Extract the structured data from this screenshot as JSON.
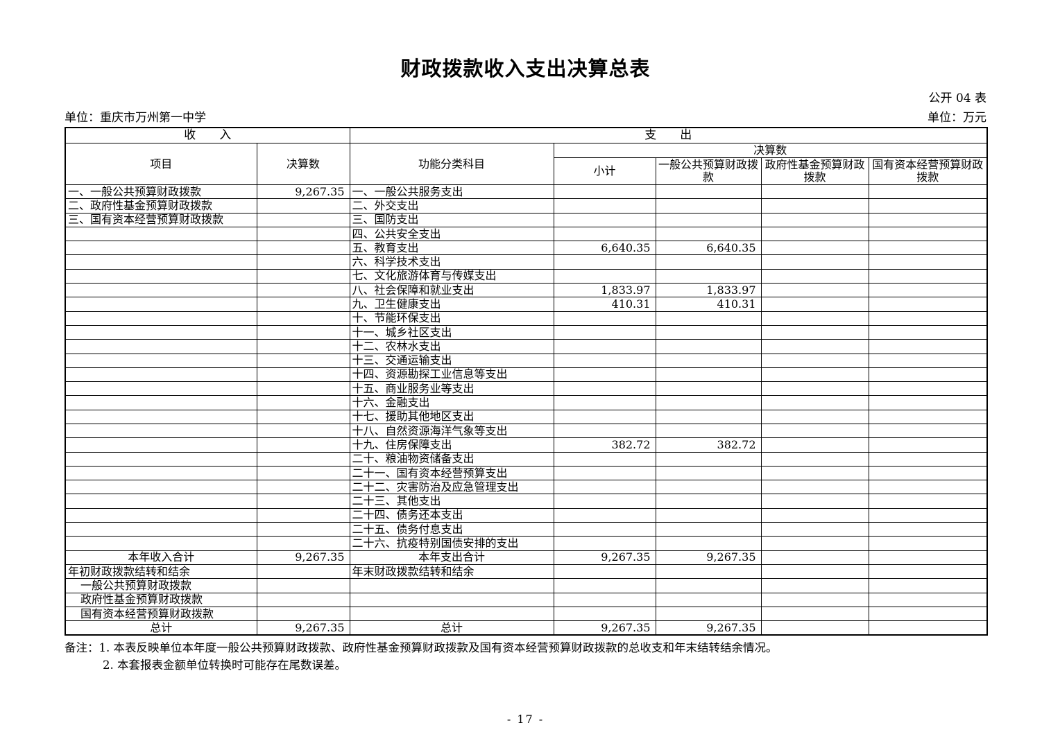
{
  "page": {
    "title": "财政拨款收入支出决算总表",
    "table_code": "公开 04 表",
    "unit_name": "单位：重庆市万州第一中学",
    "unit_measure": "单位：万元",
    "page_number": "- 17 -",
    "notes": {
      "line1": "备注：1. 本表反映单位本年度一般公共预算财政拨款、政府性基金预算财政拨款及国有资本经营预算财政拨款的总收支和年末结转结余情况。",
      "line2": "2. 本套报表金额单位转换时可能存在尾数误差。"
    }
  },
  "table": {
    "header": {
      "income_section": "收　　入",
      "expenditure_section": "支　　出",
      "item": "项目",
      "income_final_amount": "决算数",
      "functional_category": "功能分类科目",
      "expenditure_final_amount": "决算数",
      "subtotal": "小计",
      "general_public_budget": "一般公共预算财政拨款",
      "gov_fund_budget": "政府性基金预算财政拨款",
      "state_capital_budget": "国有资本经营预算财政拨款"
    },
    "row_format": [
      "income_item",
      "income_value",
      "expense_item",
      "subtotal",
      "general_public_budget",
      "gov_fund_budget",
      "state_capital_budget",
      "row_style"
    ],
    "row_style_legend": {
      "t": "both item cells centered (total row)",
      "i": "income item indented sub-line",
      "": "default left-aligned"
    },
    "rows": [
      [
        "一、一般公共预算财政拨款",
        "9,267.35",
        "一、一般公共服务支出",
        "",
        "",
        "",
        "",
        ""
      ],
      [
        "二、政府性基金预算财政拨款",
        "",
        "二、外交支出",
        "",
        "",
        "",
        "",
        ""
      ],
      [
        "三、国有资本经营预算财政拨款",
        "",
        "三、国防支出",
        "",
        "",
        "",
        "",
        ""
      ],
      [
        "",
        "",
        "四、公共安全支出",
        "",
        "",
        "",
        "",
        ""
      ],
      [
        "",
        "",
        "五、教育支出",
        "6,640.35",
        "6,640.35",
        "",
        "",
        ""
      ],
      [
        "",
        "",
        "六、科学技术支出",
        "",
        "",
        "",
        "",
        ""
      ],
      [
        "",
        "",
        "七、文化旅游体育与传媒支出",
        "",
        "",
        "",
        "",
        ""
      ],
      [
        "",
        "",
        "八、社会保障和就业支出",
        "1,833.97",
        "1,833.97",
        "",
        "",
        ""
      ],
      [
        "",
        "",
        "九、卫生健康支出",
        "410.31",
        "410.31",
        "",
        "",
        ""
      ],
      [
        "",
        "",
        "十、节能环保支出",
        "",
        "",
        "",
        "",
        ""
      ],
      [
        "",
        "",
        "十一、城乡社区支出",
        "",
        "",
        "",
        "",
        ""
      ],
      [
        "",
        "",
        "十二、农林水支出",
        "",
        "",
        "",
        "",
        ""
      ],
      [
        "",
        "",
        "十三、交通运输支出",
        "",
        "",
        "",
        "",
        ""
      ],
      [
        "",
        "",
        "十四、资源勘探工业信息等支出",
        "",
        "",
        "",
        "",
        ""
      ],
      [
        "",
        "",
        "十五、商业服务业等支出",
        "",
        "",
        "",
        "",
        ""
      ],
      [
        "",
        "",
        "十六、金融支出",
        "",
        "",
        "",
        "",
        ""
      ],
      [
        "",
        "",
        "十七、援助其他地区支出",
        "",
        "",
        "",
        "",
        ""
      ],
      [
        "",
        "",
        "十八、自然资源海洋气象等支出",
        "",
        "",
        "",
        "",
        ""
      ],
      [
        "",
        "",
        "十九、住房保障支出",
        "382.72",
        "382.72",
        "",
        "",
        ""
      ],
      [
        "",
        "",
        "二十、粮油物资储备支出",
        "",
        "",
        "",
        "",
        ""
      ],
      [
        "",
        "",
        "二十一、国有资本经营预算支出",
        "",
        "",
        "",
        "",
        ""
      ],
      [
        "",
        "",
        "二十二、灾害防治及应急管理支出",
        "",
        "",
        "",
        "",
        ""
      ],
      [
        "",
        "",
        "二十三、其他支出",
        "",
        "",
        "",
        "",
        ""
      ],
      [
        "",
        "",
        "二十四、债务还本支出",
        "",
        "",
        "",
        "",
        ""
      ],
      [
        "",
        "",
        "二十五、债务付息支出",
        "",
        "",
        "",
        "",
        ""
      ],
      [
        "",
        "",
        "二十六、抗疫特别国债安排的支出",
        "",
        "",
        "",
        "",
        ""
      ],
      [
        "本年收入合计",
        "9,267.35",
        "本年支出合计",
        "9,267.35",
        "9,267.35",
        "",
        "",
        "t"
      ],
      [
        "年初财政拨款结转和结余",
        "",
        "年末财政拨款结转和结余",
        "",
        "",
        "",
        "",
        ""
      ],
      [
        "一般公共预算财政拨款",
        "",
        "",
        "",
        "",
        "",
        "",
        "i"
      ],
      [
        "政府性基金预算财政拨款",
        "",
        "",
        "",
        "",
        "",
        "",
        "i"
      ],
      [
        "国有资本经营预算财政拨款",
        "",
        "",
        "",
        "",
        "",
        "",
        "i"
      ],
      [
        "总计",
        "9,267.35",
        "总计",
        "9,267.35",
        "9,267.35",
        "",
        "",
        "t"
      ]
    ]
  }
}
